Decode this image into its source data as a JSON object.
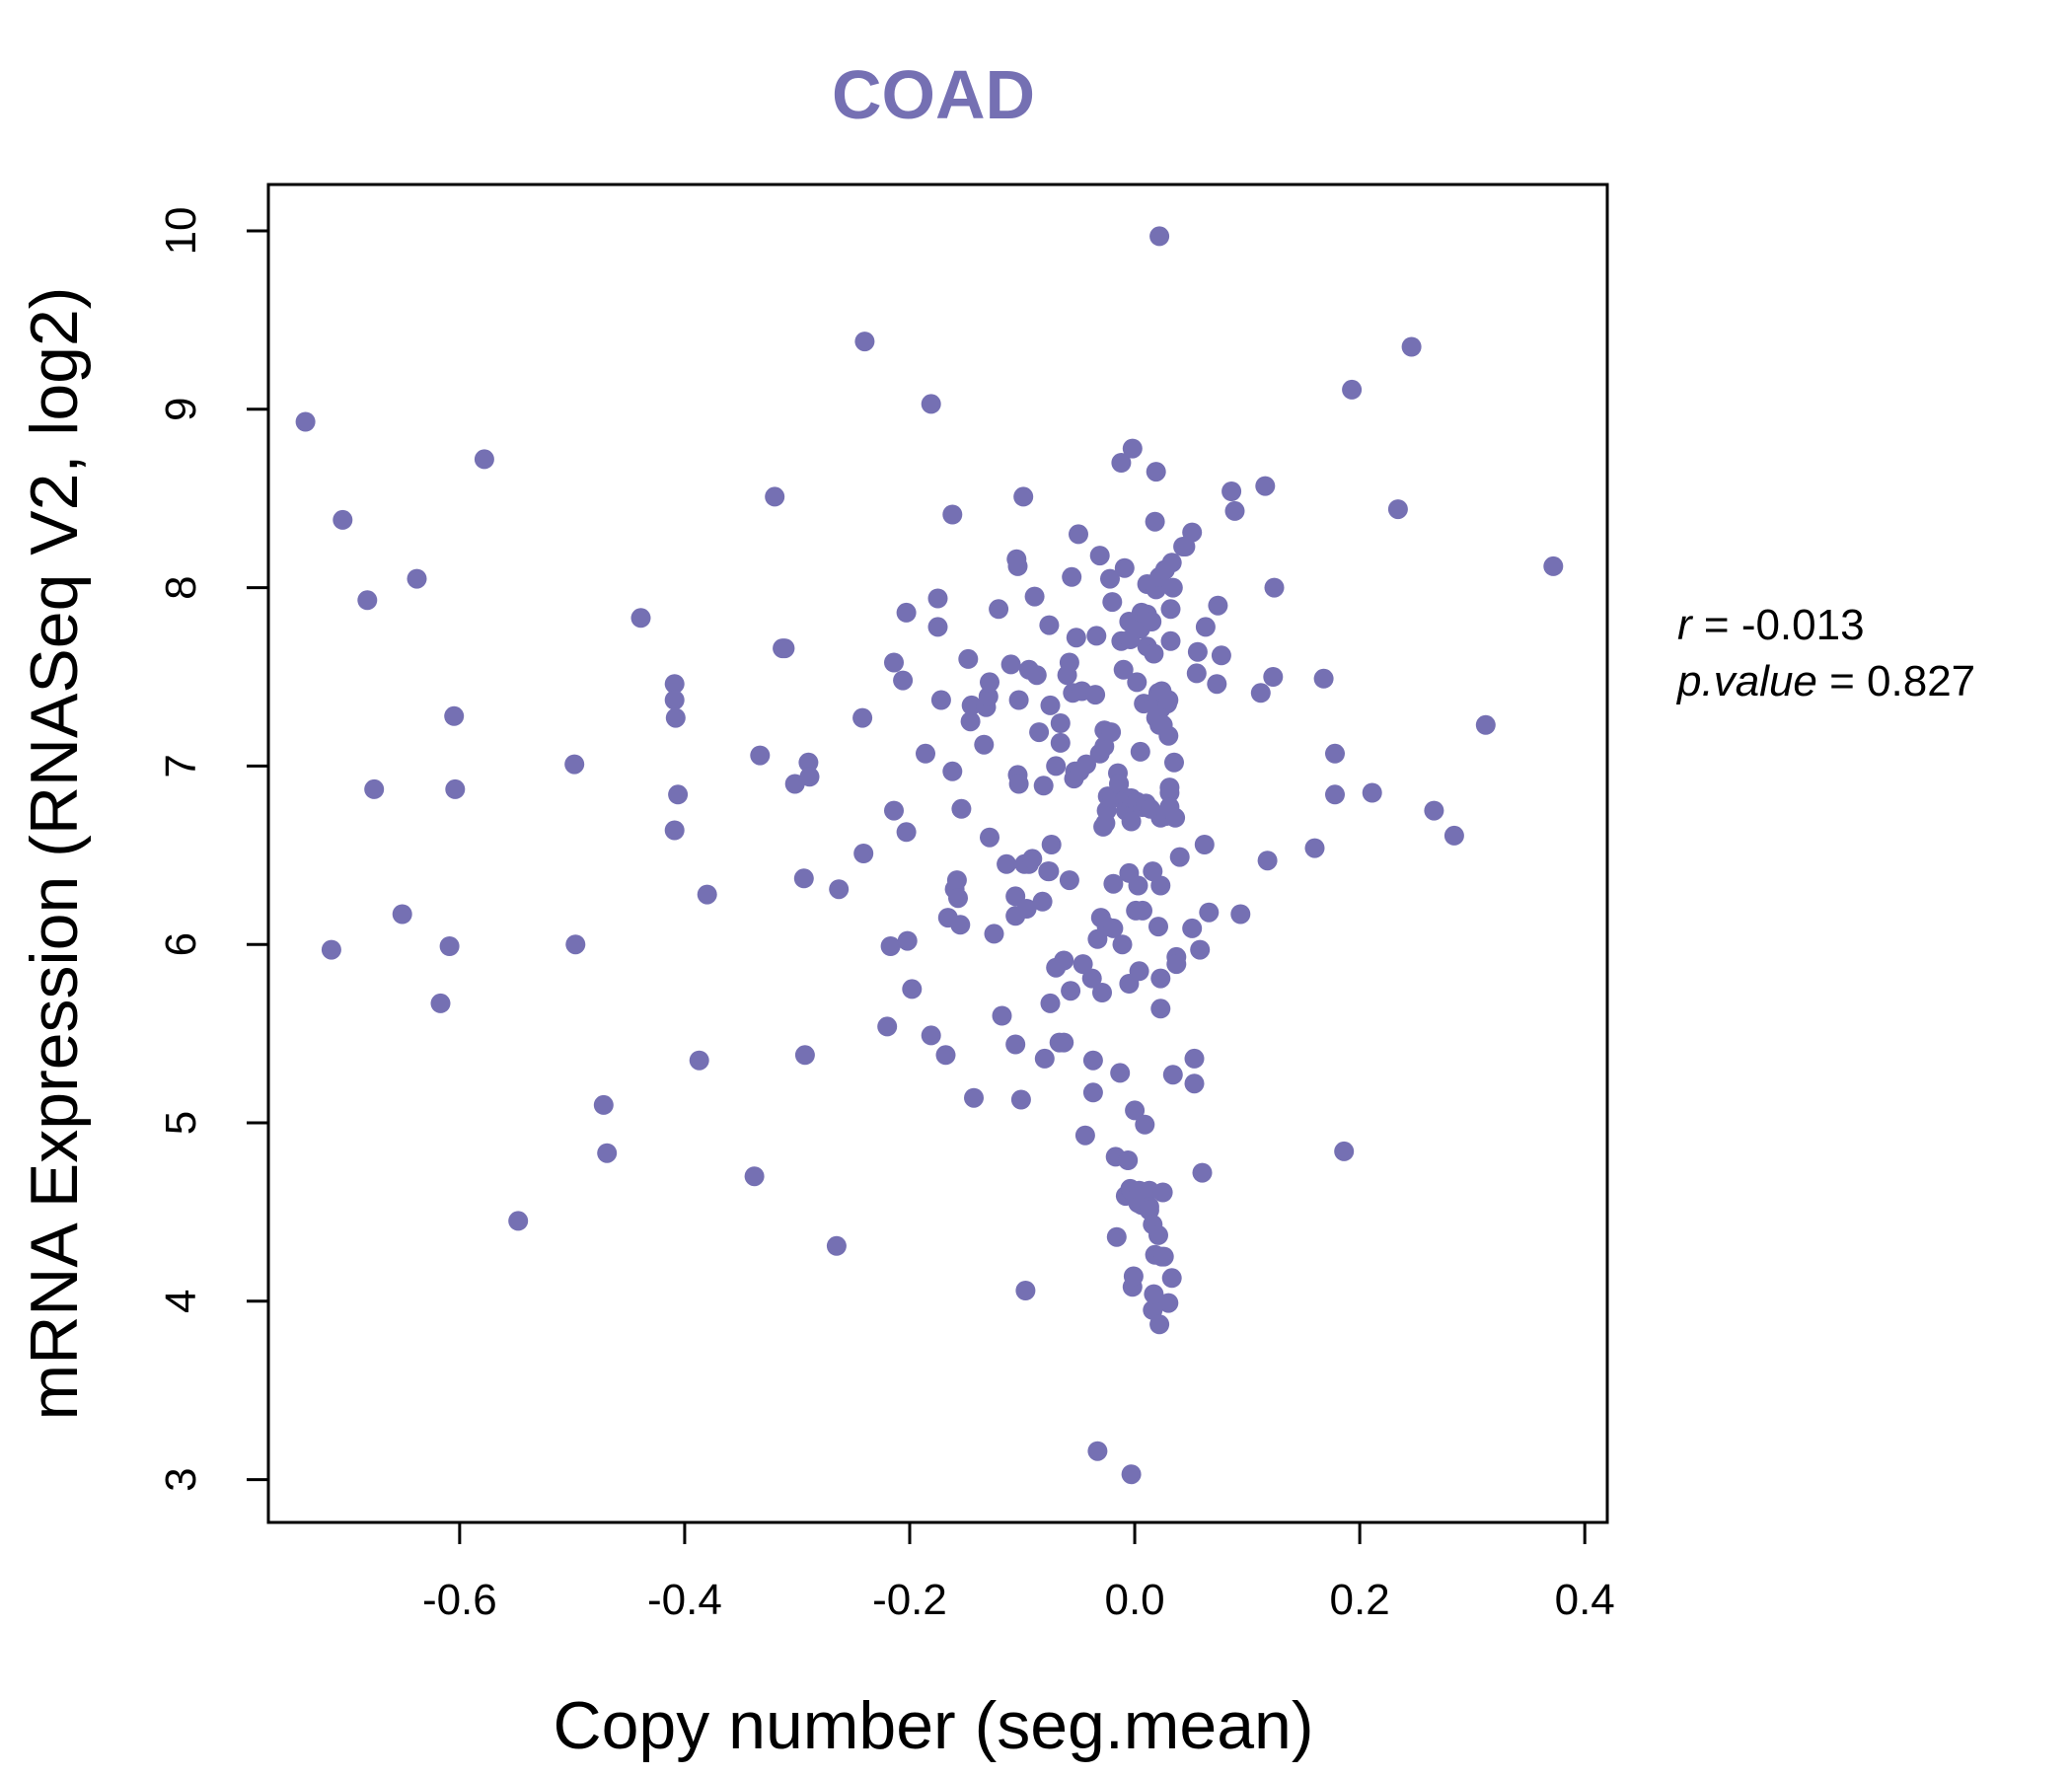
{
  "chart_data": {
    "type": "scatter",
    "title": "COAD",
    "xlabel": "Copy number (seg.mean)",
    "ylabel": "mRNA Expression (RNASeq V2, log2)",
    "xlim": [
      -0.77,
      0.42
    ],
    "ylim": [
      2.76,
      10.26
    ],
    "xticks": [
      -0.6,
      -0.4,
      -0.2,
      0.0,
      0.2,
      0.4
    ],
    "xtick_labels": [
      "-0.6",
      "-0.4",
      "-0.2",
      "0.0",
      "0.2",
      "0.4"
    ],
    "yticks": [
      3,
      4,
      5,
      6,
      7,
      8,
      9,
      10
    ],
    "ytick_labels": [
      "3",
      "4",
      "5",
      "6",
      "7",
      "8",
      "9",
      "10"
    ],
    "grid": false,
    "point_color": "#7570b3",
    "stats": {
      "r_label": "r",
      "r_value": "-0.013",
      "p_label": "p.value",
      "p_value": "0.827"
    },
    "points": [
      [
        -0.737,
        8.93
      ],
      [
        -0.704,
        8.38
      ],
      [
        -0.682,
        7.93
      ],
      [
        -0.676,
        6.87
      ],
      [
        -0.714,
        5.97
      ],
      [
        -0.651,
        6.17
      ],
      [
        -0.638,
        8.05
      ],
      [
        -0.617,
        5.67
      ],
      [
        -0.609,
        5.99
      ],
      [
        -0.605,
        7.28
      ],
      [
        -0.604,
        6.87
      ],
      [
        -0.578,
        8.72
      ],
      [
        -0.548,
        4.45
      ],
      [
        -0.498,
        7.01
      ],
      [
        -0.497,
        6.0
      ],
      [
        -0.472,
        5.1
      ],
      [
        -0.469,
        4.83
      ],
      [
        -0.439,
        7.83
      ],
      [
        -0.409,
        7.46
      ],
      [
        -0.409,
        7.37
      ],
      [
        -0.408,
        7.27
      ],
      [
        -0.406,
        6.84
      ],
      [
        -0.409,
        6.64
      ],
      [
        -0.38,
        6.28
      ],
      [
        -0.387,
        5.35
      ],
      [
        -0.338,
        4.7
      ],
      [
        -0.333,
        7.06
      ],
      [
        -0.32,
        8.51
      ],
      [
        -0.313,
        7.66
      ],
      [
        -0.311,
        7.66
      ],
      [
        -0.302,
        6.9
      ],
      [
        -0.29,
        7.02
      ],
      [
        -0.289,
        6.94
      ],
      [
        -0.294,
        6.37
      ],
      [
        -0.293,
        5.38
      ],
      [
        -0.263,
        6.31
      ],
      [
        -0.265,
        4.31
      ],
      [
        -0.24,
        9.38
      ],
      [
        -0.242,
        7.27
      ],
      [
        -0.241,
        6.51
      ],
      [
        -0.22,
        5.54
      ],
      [
        -0.217,
        5.99
      ],
      [
        -0.214,
        6.75
      ],
      [
        -0.214,
        7.58
      ],
      [
        -0.206,
        7.48
      ],
      [
        -0.203,
        7.86
      ],
      [
        -0.203,
        6.63
      ],
      [
        -0.202,
        6.02
      ],
      [
        -0.198,
        5.75
      ],
      [
        -0.186,
        7.07
      ],
      [
        -0.181,
        9.03
      ],
      [
        -0.181,
        5.49
      ],
      [
        -0.175,
        7.94
      ],
      [
        -0.175,
        7.78
      ],
      [
        -0.172,
        7.37
      ],
      [
        -0.168,
        5.38
      ],
      [
        -0.166,
        6.15
      ],
      [
        -0.162,
        6.97
      ],
      [
        -0.162,
        8.41
      ],
      [
        -0.16,
        6.31
      ],
      [
        -0.158,
        6.36
      ],
      [
        -0.157,
        6.26
      ],
      [
        -0.155,
        6.11
      ],
      [
        -0.154,
        6.76
      ],
      [
        -0.148,
        7.6
      ],
      [
        -0.146,
        7.25
      ],
      [
        -0.145,
        7.34
      ],
      [
        -0.143,
        5.14
      ],
      [
        -0.134,
        7.12
      ],
      [
        -0.132,
        7.33
      ],
      [
        -0.13,
        7.39
      ],
      [
        -0.129,
        7.47
      ],
      [
        -0.129,
        6.6
      ],
      [
        -0.125,
        6.06
      ],
      [
        -0.121,
        7.88
      ],
      [
        -0.118,
        5.6
      ],
      [
        -0.114,
        6.45
      ],
      [
        -0.11,
        7.57
      ],
      [
        -0.106,
        6.27
      ],
      [
        -0.106,
        6.16
      ],
      [
        -0.106,
        5.44
      ],
      [
        -0.105,
        8.16
      ],
      [
        -0.104,
        8.12
      ],
      [
        -0.104,
        6.95
      ],
      [
        -0.103,
        7.37
      ],
      [
        -0.103,
        6.9
      ],
      [
        -0.101,
        5.13
      ],
      [
        -0.099,
        8.51
      ],
      [
        -0.098,
        6.45
      ],
      [
        -0.097,
        4.06
      ],
      [
        -0.096,
        6.2
      ],
      [
        -0.094,
        7.54
      ],
      [
        -0.094,
        6.45
      ],
      [
        -0.091,
        6.48
      ],
      [
        -0.089,
        7.95
      ],
      [
        -0.087,
        7.51
      ],
      [
        -0.085,
        7.19
      ],
      [
        -0.082,
        6.24
      ],
      [
        -0.081,
        6.89
      ],
      [
        -0.08,
        5.36
      ],
      [
        -0.077,
        6.41
      ],
      [
        -0.076,
        6.41
      ],
      [
        -0.076,
        7.79
      ],
      [
        -0.075,
        7.34
      ],
      [
        -0.075,
        5.67
      ],
      [
        -0.074,
        6.56
      ],
      [
        -0.07,
        5.87
      ],
      [
        -0.07,
        7.0
      ],
      [
        -0.067,
        5.45
      ],
      [
        -0.066,
        7.24
      ],
      [
        -0.066,
        7.13
      ],
      [
        -0.063,
        5.91
      ],
      [
        -0.063,
        5.45
      ],
      [
        -0.06,
        7.51
      ],
      [
        -0.057,
        5.74
      ],
      [
        -0.058,
        7.58
      ],
      [
        -0.058,
        6.36
      ],
      [
        -0.056,
        8.06
      ],
      [
        -0.055,
        7.41
      ],
      [
        -0.054,
        6.93
      ],
      [
        -0.053,
        6.97
      ],
      [
        -0.052,
        7.72
      ],
      [
        -0.05,
        8.3
      ],
      [
        -0.049,
        6.97
      ],
      [
        -0.047,
        7.42
      ],
      [
        -0.046,
        5.89
      ],
      [
        -0.044,
        4.93
      ],
      [
        -0.043,
        7.01
      ],
      [
        -0.038,
        5.81
      ],
      [
        -0.037,
        5.35
      ],
      [
        -0.037,
        5.17
      ],
      [
        -0.035,
        7.4
      ],
      [
        -0.034,
        7.73
      ],
      [
        -0.033,
        6.03
      ],
      [
        -0.033,
        3.16
      ],
      [
        -0.031,
        7.07
      ],
      [
        -0.031,
        8.18
      ],
      [
        -0.03,
        6.15
      ],
      [
        -0.029,
        5.73
      ],
      [
        -0.028,
        6.66
      ],
      [
        -0.027,
        7.11
      ],
      [
        -0.027,
        7.2
      ],
      [
        -0.026,
        6.68
      ],
      [
        -0.025,
        6.1
      ],
      [
        -0.025,
        6.75
      ],
      [
        -0.024,
        6.83
      ],
      [
        -0.022,
        8.05
      ],
      [
        -0.021,
        7.19
      ],
      [
        -0.02,
        7.92
      ],
      [
        -0.02,
        6.82
      ],
      [
        -0.019,
        6.09
      ],
      [
        -0.019,
        6.34
      ],
      [
        -0.017,
        4.81
      ],
      [
        -0.016,
        4.36
      ],
      [
        -0.015,
        6.96
      ],
      [
        -0.014,
        6.9
      ],
      [
        -0.014,
        6.9
      ],
      [
        -0.013,
        5.28
      ],
      [
        -0.012,
        8.7
      ],
      [
        -0.012,
        7.7
      ],
      [
        -0.011,
        6.0
      ],
      [
        -0.01,
        7.54
      ],
      [
        -0.009,
        8.11
      ],
      [
        -0.009,
        6.81
      ],
      [
        -0.008,
        6.75
      ],
      [
        -0.008,
        4.59
      ],
      [
        -0.007,
        6.82
      ],
      [
        -0.006,
        4.79
      ],
      [
        -0.005,
        6.4
      ],
      [
        -0.005,
        5.78
      ],
      [
        -0.005,
        7.81
      ],
      [
        -0.004,
        4.63
      ],
      [
        -0.004,
        7.71
      ],
      [
        -0.003,
        6.69
      ],
      [
        -0.003,
        6.82
      ],
      [
        -0.003,
        3.03
      ],
      [
        -0.003,
        4.62
      ],
      [
        -0.002,
        8.78
      ],
      [
        -0.002,
        4.08
      ],
      [
        -0.001,
        4.14
      ],
      [
        0.0,
        5.07
      ],
      [
        0.001,
        6.19
      ],
      [
        0.002,
        7.47
      ],
      [
        0.002,
        6.8
      ],
      [
        0.003,
        6.33
      ],
      [
        0.003,
        4.55
      ],
      [
        0.004,
        4.62
      ],
      [
        0.004,
        5.85
      ],
      [
        0.005,
        7.08
      ],
      [
        0.005,
        7.77
      ],
      [
        0.006,
        4.54
      ],
      [
        0.006,
        7.86
      ],
      [
        0.007,
        6.77
      ],
      [
        0.007,
        6.19
      ],
      [
        0.008,
        7.35
      ],
      [
        0.009,
        4.6
      ],
      [
        0.009,
        4.99
      ],
      [
        0.01,
        6.79
      ],
      [
        0.011,
        7.85
      ],
      [
        0.011,
        7.67
      ],
      [
        0.011,
        8.02
      ],
      [
        0.013,
        4.62
      ],
      [
        0.013,
        4.53
      ],
      [
        0.013,
        4.51
      ],
      [
        0.014,
        6.76
      ],
      [
        0.015,
        7.81
      ],
      [
        0.016,
        4.43
      ],
      [
        0.016,
        6.41
      ],
      [
        0.016,
        3.95
      ],
      [
        0.017,
        4.04
      ],
      [
        0.017,
        7.35
      ],
      [
        0.017,
        7.63
      ],
      [
        0.018,
        4.26
      ],
      [
        0.018,
        8.37
      ],
      [
        0.019,
        8.65
      ],
      [
        0.019,
        7.27
      ],
      [
        0.019,
        7.99
      ],
      [
        0.02,
        7.38
      ],
      [
        0.021,
        7.41
      ],
      [
        0.021,
        4.37
      ],
      [
        0.021,
        6.1
      ],
      [
        0.022,
        9.97
      ],
      [
        0.022,
        3.87
      ],
      [
        0.022,
        7.23
      ],
      [
        0.022,
        8.06
      ],
      [
        0.023,
        5.81
      ],
      [
        0.023,
        6.33
      ],
      [
        0.023,
        6.71
      ],
      [
        0.023,
        7.32
      ],
      [
        0.023,
        5.64
      ],
      [
        0.024,
        4.25
      ],
      [
        0.024,
        7.42
      ],
      [
        0.025,
        7.23
      ],
      [
        0.025,
        4.61
      ],
      [
        0.026,
        4.25
      ],
      [
        0.027,
        8.1
      ],
      [
        0.028,
        6.72
      ],
      [
        0.029,
        7.35
      ],
      [
        0.03,
        7.37
      ],
      [
        0.03,
        7.17
      ],
      [
        0.03,
        3.99
      ],
      [
        0.031,
        6.85
      ],
      [
        0.031,
        6.77
      ],
      [
        0.031,
        6.88
      ],
      [
        0.032,
        7.88
      ],
      [
        0.032,
        7.7
      ],
      [
        0.033,
        4.13
      ],
      [
        0.033,
        8.14
      ],
      [
        0.034,
        5.27
      ],
      [
        0.034,
        8.0
      ],
      [
        0.035,
        7.02
      ],
      [
        0.036,
        6.71
      ],
      [
        0.037,
        5.93
      ],
      [
        0.037,
        5.89
      ],
      [
        0.04,
        6.49
      ],
      [
        0.043,
        8.23
      ],
      [
        0.045,
        8.23
      ],
      [
        0.051,
        8.31
      ],
      [
        0.051,
        6.09
      ],
      [
        0.053,
        5.36
      ],
      [
        0.053,
        5.22
      ],
      [
        0.055,
        7.52
      ],
      [
        0.056,
        7.64
      ],
      [
        0.058,
        5.97
      ],
      [
        0.06,
        4.72
      ],
      [
        0.062,
        6.56
      ],
      [
        0.063,
        7.78
      ],
      [
        0.066,
        6.18
      ],
      [
        0.073,
        7.46
      ],
      [
        0.074,
        7.9
      ],
      [
        0.077,
        7.62
      ],
      [
        0.086,
        8.54
      ],
      [
        0.089,
        8.43
      ],
      [
        0.094,
        6.17
      ],
      [
        0.112,
        7.41
      ],
      [
        0.116,
        8.57
      ],
      [
        0.118,
        6.47
      ],
      [
        0.123,
        7.5
      ],
      [
        0.124,
        8.0
      ],
      [
        0.16,
        6.54
      ],
      [
        0.168,
        7.49
      ],
      [
        0.178,
        7.07
      ],
      [
        0.178,
        6.84
      ],
      [
        0.186,
        4.84
      ],
      [
        0.193,
        9.11
      ],
      [
        0.211,
        6.85
      ],
      [
        0.234,
        8.44
      ],
      [
        0.246,
        9.35
      ],
      [
        0.266,
        6.75
      ],
      [
        0.284,
        6.61
      ],
      [
        0.312,
        7.23
      ],
      [
        0.372,
        8.12
      ]
    ]
  }
}
